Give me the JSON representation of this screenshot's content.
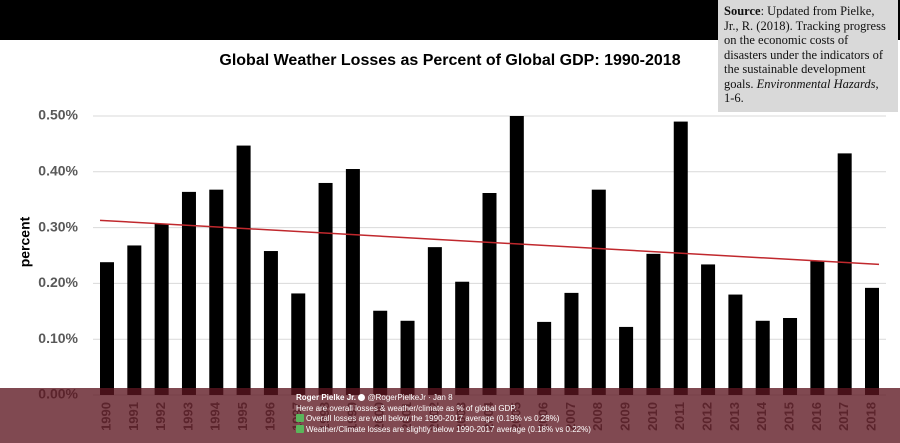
{
  "chart_data": {
    "type": "bar",
    "title": "Global Weather Losses as Percent of Global GDP: 1990-2018",
    "y_label": "percent",
    "categories": [
      "1990",
      "1991",
      "1992",
      "1993",
      "1994",
      "1995",
      "1996",
      "1997",
      "1998",
      "1999",
      "2000",
      "2001",
      "2002",
      "2003",
      "2004",
      "2005",
      "2006",
      "2007",
      "2008",
      "2009",
      "2010",
      "2011",
      "2012",
      "2013",
      "2014",
      "2015",
      "2016",
      "2017",
      "2018"
    ],
    "values": [
      0.238,
      0.268,
      0.307,
      0.364,
      0.368,
      0.447,
      0.258,
      0.182,
      0.38,
      0.405,
      0.151,
      0.133,
      0.265,
      0.203,
      0.362,
      0.5,
      0.131,
      0.183,
      0.368,
      0.122,
      0.253,
      0.49,
      0.234,
      0.18,
      0.133,
      0.138,
      0.24,
      0.433,
      0.192
    ],
    "color": "#000000",
    "trendline": {
      "values": [
        0.313,
        0.234
      ],
      "color": "#c0282d"
    },
    "ylim": [
      0,
      0.5
    ],
    "yticks": [
      {
        "value": 0,
        "label": "0.00%"
      },
      {
        "value": 0.1,
        "label": "0.10%"
      },
      {
        "value": 0.2,
        "label": "0.20%"
      },
      {
        "value": 0.3,
        "label": "0.30%"
      },
      {
        "value": 0.4,
        "label": "0.40%"
      },
      {
        "value": 0.5,
        "label": "0.50%"
      }
    ],
    "grid": true
  },
  "source": {
    "label": "Source",
    "text": ": Updated from Pielke, Jr., R. (2018). Tracking progress on the economic costs of disasters under the indicators of the sustainable development goals. ",
    "journal": "Environmental Hazards",
    "pages": ", 1-6."
  },
  "tweet": {
    "author": "Roger Pielke Jr.",
    "handle": "@RogerPielkeJr",
    "date": "Jan 8",
    "lines": [
      "Here are overall losses & weather/climate  as % of global GDP.",
      "Overall losses are well below the 1990-2017 average (0.19% vs 0.28%)",
      "Weather/Climate losses are slightly below 1990-2017 average (0.18% vs 0.22%)"
    ]
  }
}
